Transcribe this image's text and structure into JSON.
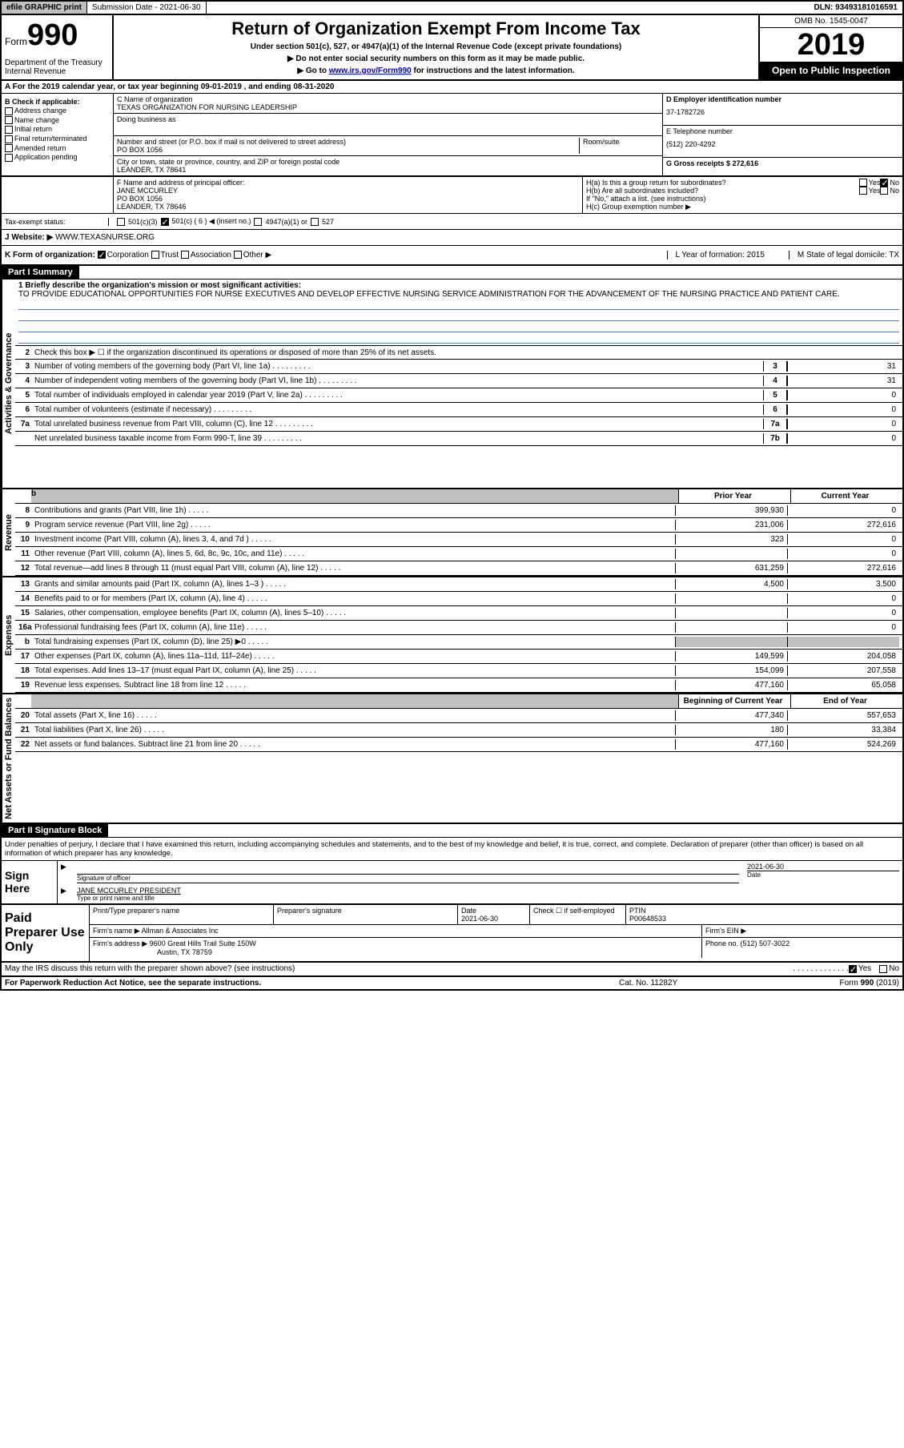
{
  "top": {
    "efile": "efile GRAPHIC print",
    "sub_date_label": "Submission Date - 2021-06-30",
    "dln": "DLN: 93493181016591"
  },
  "header": {
    "form_label": "Form",
    "form_num": "990",
    "dept1": "Department of the Treasury",
    "dept2": "Internal Revenue ",
    "title": "Return of Organization Exempt From Income Tax",
    "sub1": "Under section 501(c), 527, or 4947(a)(1) of the Internal Revenue Code (except private foundations)",
    "sub2": "▶ Do not enter social security numbers on this form as it may be made public.",
    "sub3a": "▶ Go to ",
    "sub3_link": "www.irs.gov/Form990",
    "sub3b": " for instructions and the latest information.",
    "omb": "OMB No. 1545-0047",
    "year": "2019",
    "open": "Open to Public Inspection"
  },
  "rowA": "A For the 2019 calendar year, or tax year beginning 09-01-2019   , and ending 08-31-2020",
  "colB": {
    "label": "B Check if applicable:",
    "opts": [
      "Address change",
      "Name change",
      "Initial return",
      "Final return/terminated",
      "Amended return",
      "Application pending"
    ]
  },
  "colC": {
    "name_label": "C Name of organization",
    "name": "TEXAS ORGANIZATION FOR NURSING LEADERSHIP",
    "dba_label": "Doing business as",
    "addr_label": "Number and street (or P.O. box if mail is not delivered to street address)",
    "room_label": "Room/suite",
    "addr": "PO BOX 1056",
    "city_label": "City or town, state or province, country, and ZIP or foreign postal code",
    "city": "LEANDER, TX  78641"
  },
  "colD": {
    "label": "D Employer identification number",
    "val": "37-1782726"
  },
  "colE": {
    "label": "E Telephone number",
    "val": "(512) 220-4292"
  },
  "colG": {
    "label": "G Gross receipts $ 272,616"
  },
  "rowF": {
    "label": "F  Name and address of principal officer:",
    "name": "JANE MCCURLEY",
    "addr1": "PO BOX 1056",
    "addr2": "LEANDER, TX  78646"
  },
  "rowH": {
    "a": "H(a)  Is this a group return for subordinates?",
    "b": "H(b)  Are all subordinates included?",
    "note": "If \"No,\" attach a list. (see instructions)",
    "c": "H(c)  Group exemption number ▶",
    "yes": "Yes",
    "no": "No"
  },
  "rowI": {
    "label": "Tax-exempt status:",
    "o1": "501(c)(3)",
    "o2": "501(c) ( 6 ) ◀ (insert no.)",
    "o3": "4947(a)(1) or",
    "o4": "527"
  },
  "rowJ": {
    "label": "J  Website: ▶",
    "val": " WWW.TEXASNURSE.ORG"
  },
  "rowK": {
    "label": "K Form of organization:",
    "o1": "Corporation",
    "o2": "Trust",
    "o3": "Association",
    "o4": "Other ▶",
    "L": "L Year of formation: 2015",
    "M": "M State of legal domicile: TX"
  },
  "part1": {
    "header": "Part I      Summary",
    "labels": {
      "gov": "Activities & Governance",
      "rev": "Revenue",
      "exp": "Expenses",
      "net": "Net Assets or Fund Balances"
    },
    "l1_label": "1  Briefly describe the organization's mission or most significant activities:",
    "l1_text": "TO PROVIDE EDUCATIONAL OPPORTUNITIES FOR NURSE EXECUTIVES AND DEVELOP EFFECTIVE NURSING SERVICE ADMINISTRATION FOR THE ADVANCEMENT OF THE NURSING PRACTICE AND PATIENT CARE.",
    "l2": "Check this box ▶ ☐  if the organization discontinued its operations or disposed of more than 25% of its net assets.",
    "lines_gov": [
      {
        "n": "3",
        "t": "Number of voting members of the governing body (Part VI, line 1a)",
        "box": "3",
        "v": "31"
      },
      {
        "n": "4",
        "t": "Number of independent voting members of the governing body (Part VI, line 1b)",
        "box": "4",
        "v": "31"
      },
      {
        "n": "5",
        "t": "Total number of individuals employed in calendar year 2019 (Part V, line 2a)",
        "box": "5",
        "v": "0"
      },
      {
        "n": "6",
        "t": "Total number of volunteers (estimate if necessary)",
        "box": "6",
        "v": "0"
      },
      {
        "n": "7a",
        "t": "Total unrelated business revenue from Part VIII, column (C), line 12",
        "box": "7a",
        "v": "0"
      },
      {
        "n": "",
        "t": "Net unrelated business taxable income from Form 990-T, line 39",
        "box": "7b",
        "v": "0"
      }
    ],
    "hdr_prior": "Prior Year",
    "hdr_curr": "Current Year",
    "lines_rev": [
      {
        "n": "8",
        "t": "Contributions and grants (Part VIII, line 1h)",
        "p": "399,930",
        "c": "0"
      },
      {
        "n": "9",
        "t": "Program service revenue (Part VIII, line 2g)",
        "p": "231,006",
        "c": "272,616"
      },
      {
        "n": "10",
        "t": "Investment income (Part VIII, column (A), lines 3, 4, and 7d )",
        "p": "323",
        "c": "0"
      },
      {
        "n": "11",
        "t": "Other revenue (Part VIII, column (A), lines 5, 6d, 8c, 9c, 10c, and 11e)",
        "p": "",
        "c": "0"
      },
      {
        "n": "12",
        "t": "Total revenue—add lines 8 through 11 (must equal Part VIII, column (A), line 12)",
        "p": "631,259",
        "c": "272,616"
      }
    ],
    "lines_exp": [
      {
        "n": "13",
        "t": "Grants and similar amounts paid (Part IX, column (A), lines 1–3 )",
        "p": "4,500",
        "c": "3,500"
      },
      {
        "n": "14",
        "t": "Benefits paid to or for members (Part IX, column (A), line 4)",
        "p": "",
        "c": "0"
      },
      {
        "n": "15",
        "t": "Salaries, other compensation, employee benefits (Part IX, column (A), lines 5–10)",
        "p": "",
        "c": "0"
      },
      {
        "n": "16a",
        "t": "Professional fundraising fees (Part IX, column (A), line 11e)",
        "p": "",
        "c": "0"
      },
      {
        "n": "b",
        "t": "Total fundraising expenses (Part IX, column (D), line 25) ▶0",
        "p": "SHADE",
        "c": "SHADE"
      },
      {
        "n": "17",
        "t": "Other expenses (Part IX, column (A), lines 11a–11d, 11f–24e)",
        "p": "149,599",
        "c": "204,058"
      },
      {
        "n": "18",
        "t": "Total expenses. Add lines 13–17 (must equal Part IX, column (A), line 25)",
        "p": "154,099",
        "c": "207,558"
      },
      {
        "n": "19",
        "t": "Revenue less expenses. Subtract line 18 from line 12",
        "p": "477,160",
        "c": "65,058"
      }
    ],
    "hdr_begin": "Beginning of Current Year",
    "hdr_end": "End of Year",
    "lines_net": [
      {
        "n": "20",
        "t": "Total assets (Part X, line 16)",
        "p": "477,340",
        "c": "557,653"
      },
      {
        "n": "21",
        "t": "Total liabilities (Part X, line 26)",
        "p": "180",
        "c": "33,384"
      },
      {
        "n": "22",
        "t": "Net assets or fund balances. Subtract line 21 from line 20",
        "p": "477,160",
        "c": "524,269"
      }
    ]
  },
  "part2": {
    "header": "Part II      Signature Block",
    "decl": "Under penalties of perjury, I declare that I have examined this return, including accompanying schedules and statements, and to the best of my knowledge and belief, it is true, correct, and complete. Declaration of preparer (other than officer) is based on all information of which preparer has any knowledge.",
    "sign_here": "Sign Here",
    "sig_officer": "Signature of officer",
    "date_label": "Date",
    "date": "2021-06-30",
    "name_title": "JANE MCCURLEY PRESIDENT",
    "name_title_label": "Type or print name and title",
    "paid": "Paid Preparer Use Only",
    "prep_name": "Print/Type preparer's name",
    "prep_sig": "Preparer's signature",
    "prep_date_label": "Date",
    "prep_date": "2021-06-30",
    "check_self": "Check ☐ if self-employed",
    "ptin_label": "PTIN",
    "ptin": "P00648533",
    "firm_name_label": "Firm's name    ▶",
    "firm_name": "Allman & Associates Inc",
    "firm_ein_label": "Firm's EIN ▶",
    "firm_addr_label": "Firm's address ▶",
    "firm_addr1": "9600 Great Hills Trail Suite 150W",
    "firm_addr2": "Austin, TX  78759",
    "phone_label": "Phone no. (512) 507-3022",
    "discuss": "May the IRS discuss this return with the preparer shown above? (see instructions)",
    "yes": "Yes",
    "no": "No"
  },
  "footer": {
    "left": "For Paperwork Reduction Act Notice, see the separate instructions.",
    "mid": "Cat. No. 11282Y",
    "right": "Form 990 (2019)"
  }
}
